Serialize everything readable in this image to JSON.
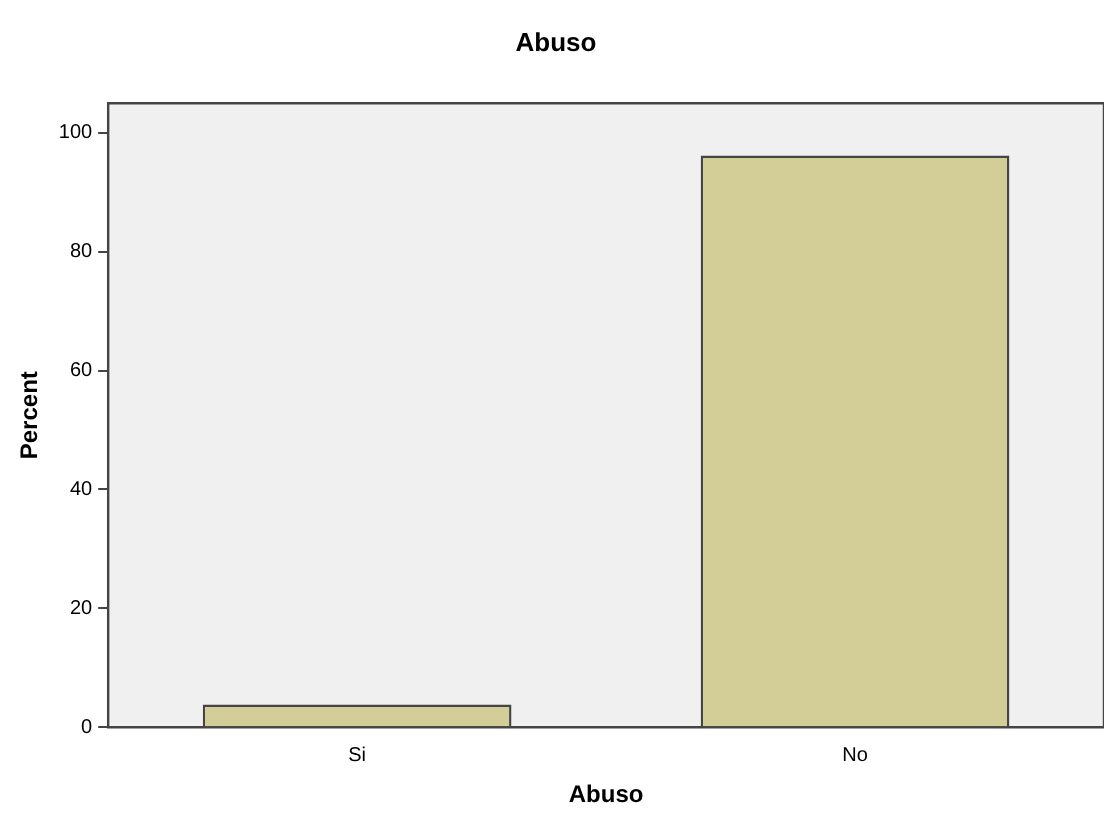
{
  "chart_data": {
    "type": "bar",
    "title": "Abuso",
    "xlabel": "Abuso",
    "ylabel": "Percent",
    "categories": [
      "Si",
      "No"
    ],
    "values": [
      3.8,
      96.2
    ],
    "color": "#d3cd98",
    "ylim": [
      0,
      105
    ],
    "yticks": [
      0,
      20,
      40,
      60,
      80,
      100
    ],
    "grid": false,
    "legend": false
  }
}
